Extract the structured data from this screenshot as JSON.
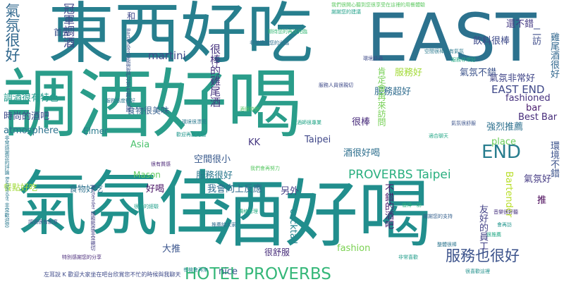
{
  "words": [
    {
      "text": "調酒好喝",
      "color": "#2a9d8a"
    },
    {
      "text": "氣氛佳",
      "color": "#21918c"
    },
    {
      "text": "酒好喝",
      "color": "#218e8d"
    },
    {
      "text": "東西好吃",
      "color": "#277f8e"
    },
    {
      "text": "EAST",
      "color": "#2c728e"
    },
    {
      "text": "氣氛很好",
      "color": "#31688e"
    },
    {
      "text": "HOTEL PROVERBS",
      "color": "#35b779"
    },
    {
      "text": "服務也很好",
      "color": "#3b528b"
    },
    {
      "text": "END",
      "color": "#287d8e"
    },
    {
      "text": "PROVERBS Taipei",
      "color": "#29af7f"
    },
    {
      "text": "冠軍調酒",
      "color": "#404688"
    },
    {
      "text": "飲料很棒",
      "color": "#3e4a89"
    },
    {
      "text": "還不錯",
      "color": "#443983"
    },
    {
      "text": "二訪",
      "color": "#3e4c8a"
    },
    {
      "text": "雞尾酒很好",
      "color": "#31678e"
    },
    {
      "text": "很棒的雞尾酒",
      "color": "#46337f"
    },
    {
      "text": "服務好",
      "color": "#a2da37"
    },
    {
      "text": "氣氛不錯",
      "color": "#3b528b"
    },
    {
      "text": "氣氛非常好",
      "color": "#404588"
    },
    {
      "text": "EAST END",
      "color": "#3f4889"
    },
    {
      "text": "fashioned",
      "color": "#46317e"
    },
    {
      "text": "bar",
      "color": "#481b6d"
    },
    {
      "text": "Best Bar",
      "color": "#472d7b"
    },
    {
      "text": "martini",
      "color": "#3e4989"
    },
    {
      "text": "調酒很有特色",
      "color": "#1f998a"
    },
    {
      "text": "時尚的酒吧",
      "color": "#3e4a89"
    },
    {
      "text": "atmosphere",
      "color": "#2c738e"
    },
    {
      "text": "服務超好",
      "color": "#2f6c8e"
    },
    {
      "text": "食物很美味",
      "color": "#355f8d"
    },
    {
      "text": "肯定會再來訪問",
      "color": "#75d054"
    },
    {
      "text": "強烈推薦",
      "color": "#2d708e"
    },
    {
      "text": "Elmer",
      "color": "#287c8e"
    },
    {
      "text": "Asia",
      "color": "#4ac16d"
    },
    {
      "text": "KK",
      "color": "#453781"
    },
    {
      "text": "很棒",
      "color": "#472a7a"
    },
    {
      "text": "Taipei",
      "color": "#3f4788"
    },
    {
      "text": "空間很小",
      "color": "#38598c"
    },
    {
      "text": "酒很好喝",
      "color": "#2e6f8e"
    },
    {
      "text": "place",
      "color": "#6ccd5a"
    },
    {
      "text": "Bartender",
      "color": "#b8de29"
    },
    {
      "text": "環境不錯",
      "color": "#3b528b"
    },
    {
      "text": "服務很好",
      "color": "#2a778e"
    },
    {
      "text": "Mason",
      "color": "#63cb5f"
    },
    {
      "text": "食物好吃",
      "color": "#2d718e"
    },
    {
      "text": "好喝",
      "color": "#471164"
    },
    {
      "text": "我會向上反應",
      "color": "#2f6b8e"
    },
    {
      "text": "另外",
      "color": "#433e85"
    },
    {
      "text": "氣氛好",
      "color": "#443a83"
    },
    {
      "text": "推",
      "color": "#440154"
    },
    {
      "text": "友好的員工",
      "color": "#424186"
    },
    {
      "text": "不錯的酒吧",
      "color": "#48186a"
    },
    {
      "text": "cocktail",
      "color": "#25848e"
    },
    {
      "text": "fashion",
      "color": "#7ad151"
    },
    {
      "text": "很舒服",
      "color": "#472c7a"
    },
    {
      "text": "nice",
      "color": "#39568c"
    },
    {
      "text": "大推",
      "color": "#3a548c"
    },
    {
      "text": "首先",
      "color": "#3b528b"
    },
    {
      "text": "和",
      "color": "#3f4889"
    },
    {
      "text": "餐點好吃",
      "color": "#a0da39"
    },
    {
      "text": "我們很開心聽到您很享受在這裡的用餐體驗",
      "color": "#5ec962"
    },
    {
      "text": "Bartender也能與我們分享有趣的話題",
      "color": "#3a538b"
    },
    {
      "text": "Bartender 服務態度非常親切",
      "color": "#433d84"
    },
    {
      "text": "非常感謝您的光臨",
      "color": "#2e6e8e"
    },
    {
      "text": "謝謝您的建議",
      "color": "#1fa088"
    },
    {
      "text": "服務非常好",
      "color": "#23a983"
    },
    {
      "text": "空間很棒很有氣氛",
      "color": "#29798e"
    },
    {
      "text": "期待您的再次光臨",
      "color": "#38b977"
    },
    {
      "text": "服務人員很親切",
      "color": "#3e4a89"
    },
    {
      "text": "酒很特別",
      "color": "#56c667"
    },
    {
      "text": "調酒師很專業",
      "color": "#20a486"
    },
    {
      "text": "環境很漂亮",
      "color": "#2a788e"
    },
    {
      "text": "我們會再努力",
      "color": "#5ac864"
    },
    {
      "text": "適合聊天",
      "color": "#21a685"
    },
    {
      "text": "氣氛很舒服",
      "color": "#3b528b"
    },
    {
      "text": "很有質感",
      "color": "#482475"
    },
    {
      "text": "價格合理",
      "color": "#25ac82"
    },
    {
      "text": "值得一訪",
      "color": "#2db27d"
    },
    {
      "text": "謝謝您的支持",
      "color": "#34608d"
    },
    {
      "text": "音樂很好聽",
      "color": "#46307e"
    },
    {
      "text": "會再訪",
      "color": "#1f948c"
    },
    {
      "text": "很推薦",
      "color": "#22a884"
    },
    {
      "text": "整體很棒",
      "color": "#2b748e"
    },
    {
      "text": "非常喜歡",
      "color": "#1e9c89"
    },
    {
      "text": "很喜歡這裡",
      "color": "#21918c"
    },
    {
      "text": "左耳說 K 歡迎大家坐在吧台欣賞您不忙的時候與我聊天",
      "color": "#3e4a89"
    },
    {
      "text": "非常感謝您的評論 Bartender 非常歡迎您",
      "color": "#2a788e"
    },
    {
      "text": "特別感謝您的分享",
      "color": "#482979"
    },
    {
      "text": "調酒很有創意",
      "color": "#39568c"
    },
    {
      "text": "服務態度很好",
      "color": "#2a788e"
    },
    {
      "text": "歡迎再度光臨",
      "color": "#1f968b"
    },
    {
      "text": "很棒的經驗",
      "color": "#1f9e89"
    },
    {
      "text": "環境舒適",
      "color": "#3e4a89"
    },
    {
      "text": "推薦給大家",
      "color": "#2f6c8e"
    },
    {
      "text": "有機會再來",
      "color": "#23898e"
    }
  ]
}
